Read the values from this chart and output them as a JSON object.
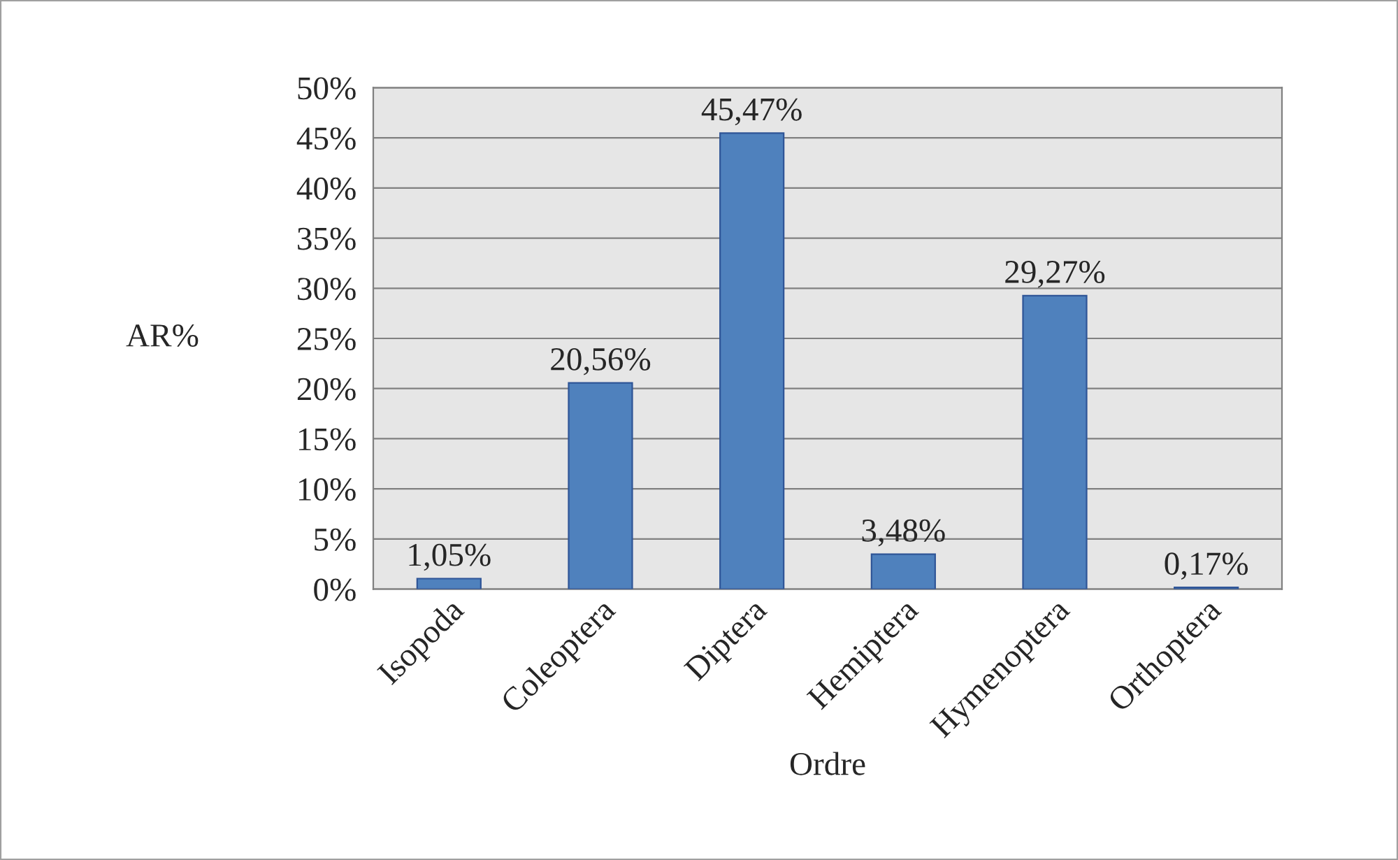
{
  "chart_data": {
    "type": "bar",
    "xlabel": "Ordre",
    "ylabel": "AR%",
    "categories": [
      "Isopoda",
      "Coleoptera",
      "Diptera",
      "Hemiptera",
      "Hymenoptera",
      "Orthoptera"
    ],
    "values": [
      1.05,
      20.56,
      45.47,
      3.48,
      29.27,
      0.17
    ],
    "value_labels": [
      "1,05%",
      "20,56%",
      "45,47%",
      "3,48%",
      "29,27%",
      "0,17%"
    ],
    "color": "#4f81bd",
    "ylim": [
      0,
      50
    ],
    "yticks": [
      {
        "value": 0,
        "label": "0%"
      },
      {
        "value": 5,
        "label": "5%"
      },
      {
        "value": 10,
        "label": "10%"
      },
      {
        "value": 15,
        "label": "15%"
      },
      {
        "value": 20,
        "label": "20%"
      },
      {
        "value": 25,
        "label": "25%"
      },
      {
        "value": 30,
        "label": "30%"
      },
      {
        "value": 35,
        "label": "35%"
      },
      {
        "value": 40,
        "label": "40%"
      },
      {
        "value": 45,
        "label": "45%"
      },
      {
        "value": 50,
        "label": "50%"
      }
    ],
    "grid": "y",
    "legend": false
  }
}
